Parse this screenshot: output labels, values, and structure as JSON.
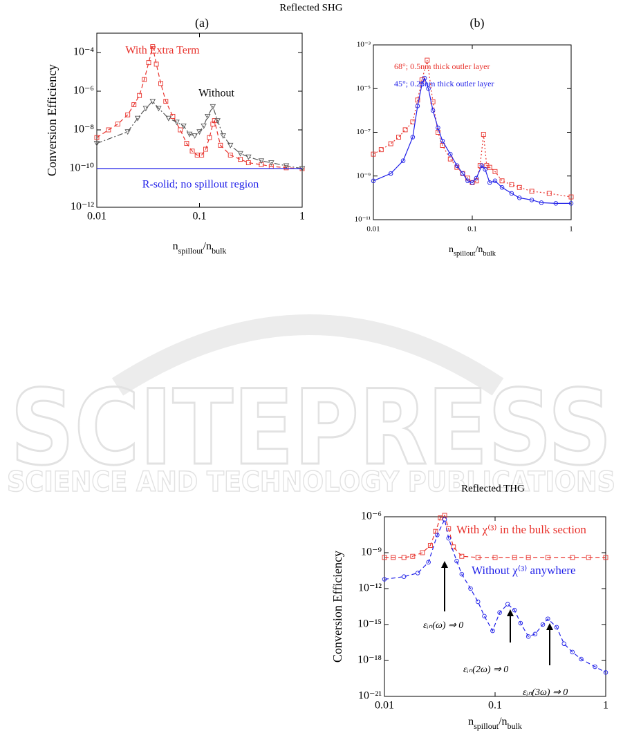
{
  "heading": "Reflected SHG",
  "watermark": {
    "title": "SCITEPRESS",
    "subtitle": "SCIENCE AND TECHNOLOGY PUBLICATIONS"
  },
  "chart_data": [
    {
      "type": "line",
      "title": "(a)",
      "ylabel": "Conversion Efficiency",
      "xlabel": [
        "n",
        "spillout",
        "/n",
        "bulk"
      ],
      "xscale": "log",
      "yscale": "log",
      "xlim": [
        0.01,
        1
      ],
      "xticks": [
        0.01,
        0.1,
        1
      ],
      "ylim": [
        1e-12,
        0.001
      ],
      "yticks": [
        {
          "value": 1e-12,
          "label": "10⁻¹²"
        },
        {
          "value": 1e-10,
          "label": "10⁻¹⁰"
        },
        {
          "value": 1e-08,
          "label": "10⁻⁸"
        },
        {
          "value": 1e-06,
          "label": "10⁻⁶"
        },
        {
          "value": 0.0001,
          "label": "10⁻⁴"
        }
      ],
      "series": [
        {
          "name": "With Extra Term",
          "color": "#e8302a",
          "marker": "square",
          "line": "dashed",
          "x": [
            0.01,
            0.013,
            0.016,
            0.02,
            0.023,
            0.026,
            0.029,
            0.032,
            0.035,
            0.038,
            0.042,
            0.047,
            0.055,
            0.065,
            0.075,
            0.085,
            0.095,
            0.105,
            0.115,
            0.125,
            0.135,
            0.14,
            0.16,
            0.2,
            0.25,
            0.3,
            0.4,
            0.5,
            0.7,
            1
          ],
          "values": [
            4e-09,
            1e-08,
            2e-08,
            6e-08,
            2e-07,
            6e-07,
            4e-06,
            3e-05,
            0.0002,
            2.5e-05,
            2.5e-06,
            3e-07,
            5e-08,
            1e-08,
            2e-09,
            8e-10,
            5e-10,
            5e-10,
            1e-09,
            4e-09,
            2e-08,
            3e-08,
            1.6e-09,
            5e-10,
            3e-10,
            2e-10,
            1.6e-10,
            1.3e-10,
            1.1e-10,
            1e-10
          ]
        },
        {
          "name": "Without",
          "color": "#555555",
          "marker": "triangle",
          "line": "dashdot",
          "x": [
            0.01,
            0.02,
            0.025,
            0.03,
            0.035,
            0.04,
            0.05,
            0.06,
            0.07,
            0.08,
            0.09,
            0.1,
            0.11,
            0.12,
            0.135,
            0.15,
            0.17,
            0.2,
            0.25,
            0.3,
            0.4,
            0.5,
            0.7,
            1
          ],
          "values": [
            2e-09,
            8e-09,
            4e-08,
            1.3e-07,
            3e-07,
            1.3e-07,
            4e-08,
            2.5e-08,
            1.6e-08,
            6e-09,
            5e-09,
            8e-09,
            1.6e-08,
            5e-08,
            1.6e-07,
            3e-08,
            5e-09,
            1.6e-09,
            6e-10,
            4e-10,
            2.5e-10,
            2e-10,
            1.4e-10,
            1e-10
          ]
        },
        {
          "name": "R-solid; no spillout region",
          "color": "#1f1fe8",
          "marker": "none",
          "line": "solid",
          "x": [
            0.01,
            1
          ],
          "values": [
            1e-10,
            1e-10
          ]
        }
      ]
    },
    {
      "type": "line",
      "title": "(b)",
      "xlabel": [
        "n",
        "spillout",
        "/n",
        "bulk"
      ],
      "xscale": "log",
      "yscale": "log",
      "xlim": [
        0.01,
        1
      ],
      "xticks": [
        0.01,
        0.1,
        1
      ],
      "ylim": [
        1e-11,
        0.001
      ],
      "yticks": [
        {
          "value": 1e-11,
          "label": "10⁻¹¹"
        },
        {
          "value": 1e-09,
          "label": "10⁻⁹"
        },
        {
          "value": 1e-07,
          "label": "10⁻⁷"
        },
        {
          "value": 1e-05,
          "label": "10⁻⁵"
        },
        {
          "value": 0.001,
          "label": "10⁻³"
        }
      ],
      "series": [
        {
          "name": "68°; 0.5nm thick outler layer",
          "color": "#e8302a",
          "marker": "square",
          "line": "dotted",
          "x": [
            0.01,
            0.012,
            0.015,
            0.018,
            0.021,
            0.025,
            0.028,
            0.031,
            0.035,
            0.04,
            0.045,
            0.05,
            0.06,
            0.07,
            0.08,
            0.09,
            0.1,
            0.11,
            0.12,
            0.13,
            0.14,
            0.15,
            0.17,
            0.2,
            0.25,
            0.3,
            0.4,
            0.6,
            1
          ],
          "values": [
            1e-08,
            1.6e-08,
            3e-08,
            6e-08,
            1.3e-07,
            3e-07,
            3e-06,
            2.5e-05,
            0.0002,
            2.5e-06,
            1e-07,
            2.5e-08,
            6e-09,
            2.5e-09,
            1.3e-09,
            8e-10,
            5e-10,
            6e-10,
            3e-09,
            8e-08,
            3e-09,
            2.5e-09,
            1.6e-09,
            6e-10,
            4e-10,
            3e-10,
            2e-10,
            1.6e-10,
            1.1e-10
          ]
        },
        {
          "name": "45°; 0.25nm thick outler layer",
          "color": "#1f1fe8",
          "marker": "circle",
          "line": "solid",
          "x": [
            0.01,
            0.015,
            0.02,
            0.025,
            0.028,
            0.031,
            0.033,
            0.036,
            0.04,
            0.045,
            0.05,
            0.06,
            0.07,
            0.08,
            0.09,
            0.1,
            0.11,
            0.125,
            0.135,
            0.15,
            0.17,
            0.2,
            0.25,
            0.3,
            0.4,
            0.5,
            0.7,
            1
          ],
          "values": [
            6e-10,
            1.3e-09,
            5e-09,
            6e-08,
            1.6e-06,
            1.6e-05,
            3e-05,
            1e-05,
            1e-06,
            1.6e-07,
            4e-08,
            1e-08,
            3e-09,
            1.3e-09,
            6e-10,
            5e-10,
            8e-10,
            3e-09,
            2e-09,
            5e-10,
            6e-10,
            3e-10,
            1.6e-10,
            1e-10,
            8e-11,
            6e-11,
            5.6e-11,
            5.6e-11
          ]
        }
      ]
    },
    {
      "type": "line",
      "title": "Reflected THG",
      "ylabel": "Conversion Efficiency",
      "xlabel": [
        "n",
        "spillout",
        "/n",
        "bulk"
      ],
      "xscale": "log",
      "yscale": "log",
      "xlim": [
        0.01,
        1
      ],
      "xticks": [
        0.01,
        0.1,
        1
      ],
      "ylim": [
        1e-21,
        1e-06
      ],
      "yticks": [
        {
          "value": 1e-21,
          "label": "10⁻²¹"
        },
        {
          "value": 1e-18,
          "label": "10⁻¹⁸"
        },
        {
          "value": 1e-15,
          "label": "10⁻¹⁵"
        },
        {
          "value": 1e-12,
          "label": "10⁻¹²"
        },
        {
          "value": 1e-09,
          "label": "10⁻⁹"
        },
        {
          "value": 1e-06,
          "label": "10⁻⁶"
        }
      ],
      "series": [
        {
          "name": "With χ⁽³⁾ in the bulk section",
          "color": "#e8302a",
          "marker": "square",
          "line": "dashed",
          "x": [
            0.01,
            0.012,
            0.015,
            0.018,
            0.022,
            0.026,
            0.029,
            0.032,
            0.035,
            0.038,
            0.042,
            0.05,
            0.07,
            0.1,
            0.15,
            0.2,
            0.3,
            0.5,
            0.7,
            1
          ],
          "values": [
            4e-10,
            4e-10,
            4e-10,
            5e-10,
            1e-09,
            4e-09,
            6e-08,
            8e-07,
            1.3e-06,
            1e-07,
            3e-09,
            5e-10,
            4e-10,
            4e-10,
            4e-10,
            4e-10,
            4e-10,
            4e-10,
            4e-10,
            4e-10
          ]
        },
        {
          "name": "Without χ⁽³⁾ anywhere",
          "color": "#1f1fe8",
          "marker": "circle",
          "line": "dashed",
          "x": [
            0.01,
            0.015,
            0.02,
            0.025,
            0.03,
            0.035,
            0.038,
            0.045,
            0.05,
            0.06,
            0.07,
            0.08,
            0.095,
            0.11,
            0.13,
            0.15,
            0.17,
            0.2,
            0.23,
            0.27,
            0.3,
            0.36,
            0.42,
            0.5,
            0.6,
            0.8,
            1
          ],
          "values": [
            6e-12,
            1e-11,
            2e-11,
            1.6e-10,
            3e-08,
            6e-07,
            1.6e-08,
            2e-10,
            1.6e-11,
            1e-12,
            8e-14,
            5e-15,
            3e-16,
            1e-14,
            5e-14,
            1.6e-14,
            1.3e-15,
            1e-16,
            1.6e-16,
            1e-15,
            3e-15,
            6e-16,
            2.5e-17,
            5e-18,
            1.3e-18,
            3e-19,
            1e-19
          ]
        }
      ],
      "annotations": [
        "εᵢₙ(ω) ⇒ 0",
        "εᵢₙ(2ω) ⇒ 0",
        "εᵢₙ(3ω) ⇒ 0"
      ]
    }
  ]
}
